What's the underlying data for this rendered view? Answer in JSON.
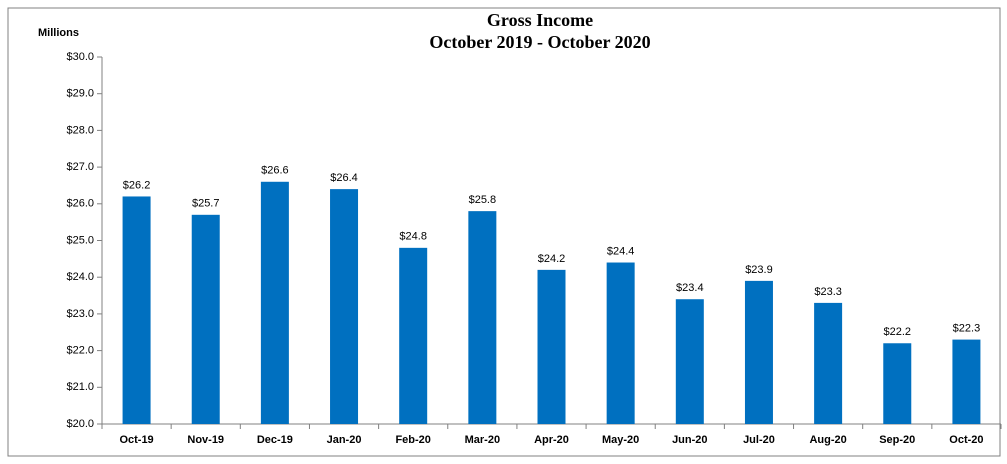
{
  "chart_data": {
    "type": "bar",
    "title": "Gross Income",
    "subtitle": "October 2019 - October 2020",
    "y_label": "Millions",
    "categories": [
      "Oct-19",
      "Nov-19",
      "Dec-19",
      "Jan-20",
      "Feb-20",
      "Mar-20",
      "Apr-20",
      "May-20",
      "Jun-20",
      "Jul-20",
      "Aug-20",
      "Sep-20",
      "Oct-20"
    ],
    "values": [
      26.2,
      25.7,
      26.6,
      26.4,
      24.8,
      25.8,
      24.2,
      24.4,
      23.4,
      23.9,
      23.3,
      22.2,
      22.3
    ],
    "value_labels": [
      "$26.2",
      "$25.7",
      "$26.6",
      "$26.4",
      "$24.8",
      "$25.8",
      "$24.2",
      "$24.4",
      "$23.4",
      "$23.9",
      "$23.3",
      "$22.2",
      "$22.3"
    ],
    "color": "#0070c0",
    "ylim": [
      20,
      30
    ],
    "yticks": [
      {
        "value": 20,
        "label": "$20.0"
      },
      {
        "value": 21,
        "label": "$21.0"
      },
      {
        "value": 22,
        "label": "$22.0"
      },
      {
        "value": 23,
        "label": "$23.0"
      },
      {
        "value": 24,
        "label": "$24.0"
      },
      {
        "value": 25,
        "label": "$25.0"
      },
      {
        "value": 26,
        "label": "$26.0"
      },
      {
        "value": 27,
        "label": "$27.0"
      },
      {
        "value": 28,
        "label": "$28.0"
      },
      {
        "value": 29,
        "label": "$29.0"
      },
      {
        "value": 30,
        "label": "$30.0"
      }
    ],
    "grid": false
  }
}
